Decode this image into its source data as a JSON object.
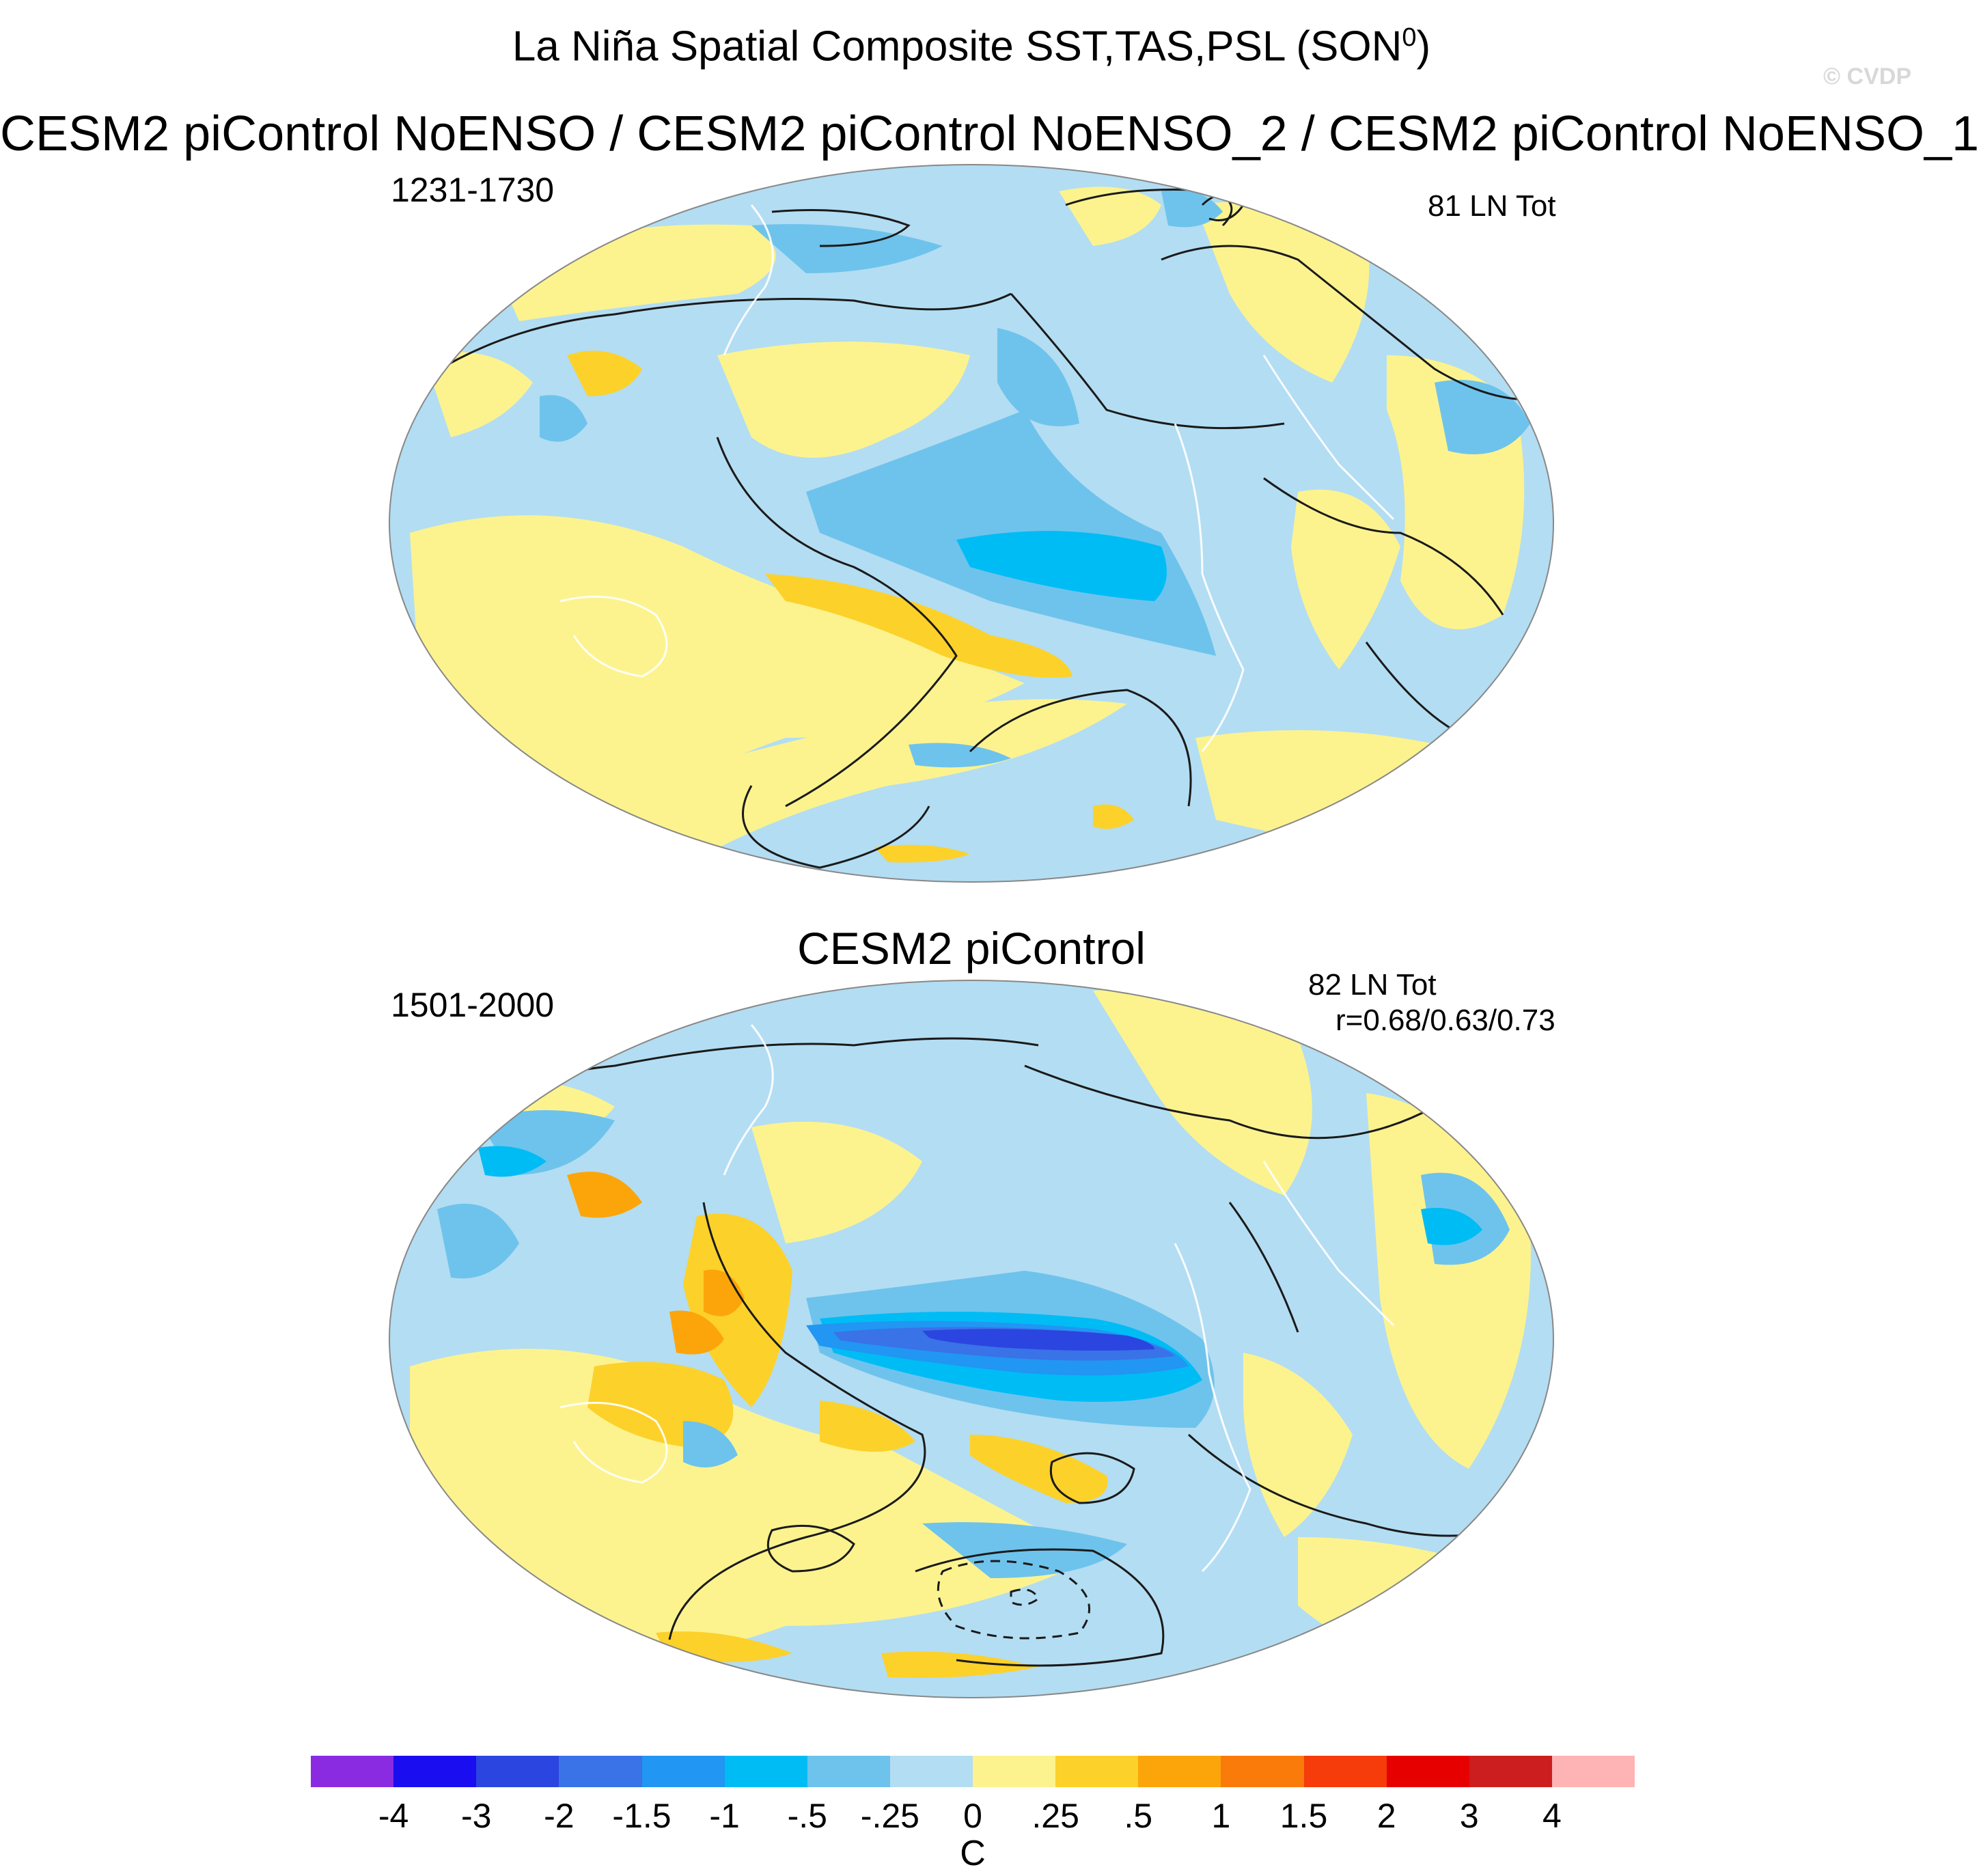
{
  "figure": {
    "title_main": "La Niña Spatial Composite SST,TAS,PSL (SON",
    "title_sup": "0",
    "title_close": ")",
    "watermark": "© CVDP",
    "subtitle": "CESM2 piControl NoENSO / CESM2 piControl NoENSO_2 / CESM2 piControl NoENSO_1"
  },
  "panels": [
    {
      "title": "",
      "period": "1231-1730",
      "count_label": "81 LN Tot",
      "correlation": ""
    },
    {
      "title": "CESM2 piControl",
      "period": "1501-2000",
      "count_label": "82 LN Tot",
      "correlation": "r=0.68/0.63/0.73"
    }
  ],
  "colorbar": {
    "unit": "C",
    "tick_labels": [
      "-4",
      "-3",
      "-2",
      "-1.5",
      "-1",
      "-.5",
      "-.25",
      "0",
      ".25",
      ".5",
      "1",
      "1.5",
      "2",
      "3",
      "4"
    ],
    "colors": [
      "#8a2be2",
      "#1a0df0",
      "#2b45e0",
      "#3a72e8",
      "#2196f3",
      "#00bcf5",
      "#6ec3ec",
      "#b3ddf2",
      "#fcf38f",
      "#fcd12a",
      "#fca50a",
      "#fa7a0a",
      "#f53c0a",
      "#e60000",
      "#cc1e1e",
      "#feb4b4"
    ]
  },
  "colors": {
    "ocean_background": "#b3ddf2",
    "contour_line": "#1a1a1a",
    "coastline": "#ffffff"
  }
}
